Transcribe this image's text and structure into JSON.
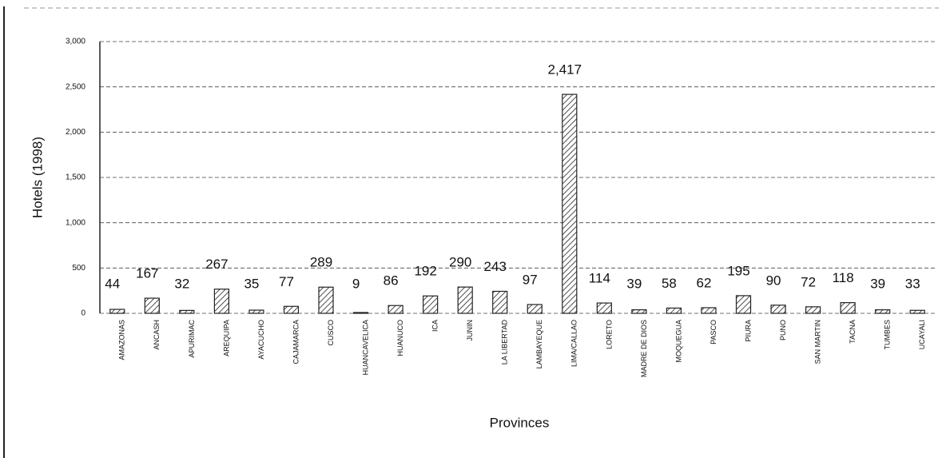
{
  "chart_data": {
    "type": "bar",
    "y_label": "Hotels (1998)",
    "x_label": "Provinces",
    "categories": [
      "AMAZONAS",
      "ANCASH",
      "APURIMAC",
      "AREQUIPA",
      "AYACUCHO",
      "CAJAMARCA",
      "CUSCO",
      "HUANCAVELICA",
      "HUANUCO",
      "ICA",
      "JUNIN",
      "LA LIBERTAD",
      "LAMBAYEQUE",
      "LIMA/CALLAO",
      "LORETO",
      "MADRE DE DIOS",
      "MOQUEGUA",
      "PASCO",
      "PIURA",
      "PUNO",
      "SAN MARTIN",
      "TACNA",
      "TUMBES",
      "UCAYALI"
    ],
    "values": [
      44,
      167,
      32,
      267,
      35,
      77,
      289,
      9,
      86,
      192,
      290,
      243,
      97,
      2417,
      114,
      39,
      58,
      62,
      195,
      90,
      72,
      118,
      39,
      33
    ],
    "value_labels": [
      "44",
      "167",
      "32",
      "267",
      "35",
      "77",
      "289",
      "9",
      "86",
      "192",
      "290",
      "243",
      "97",
      "2,417",
      "114",
      "39",
      "58",
      "62",
      "195",
      "90",
      "72",
      "118",
      "39",
      "33"
    ],
    "color": "#222222",
    "ylim": [
      0,
      3000
    ],
    "yticks": [
      0,
      500,
      {
        "value": 1000,
        "label": "1,000"
      },
      {
        "value": 1500,
        "label": "1,500"
      },
      {
        "value": 2000,
        "label": "2,000"
      },
      {
        "value": 2500,
        "label": "2,500"
      },
      {
        "value": 3000,
        "label": "3,000"
      }
    ],
    "grid": true
  }
}
